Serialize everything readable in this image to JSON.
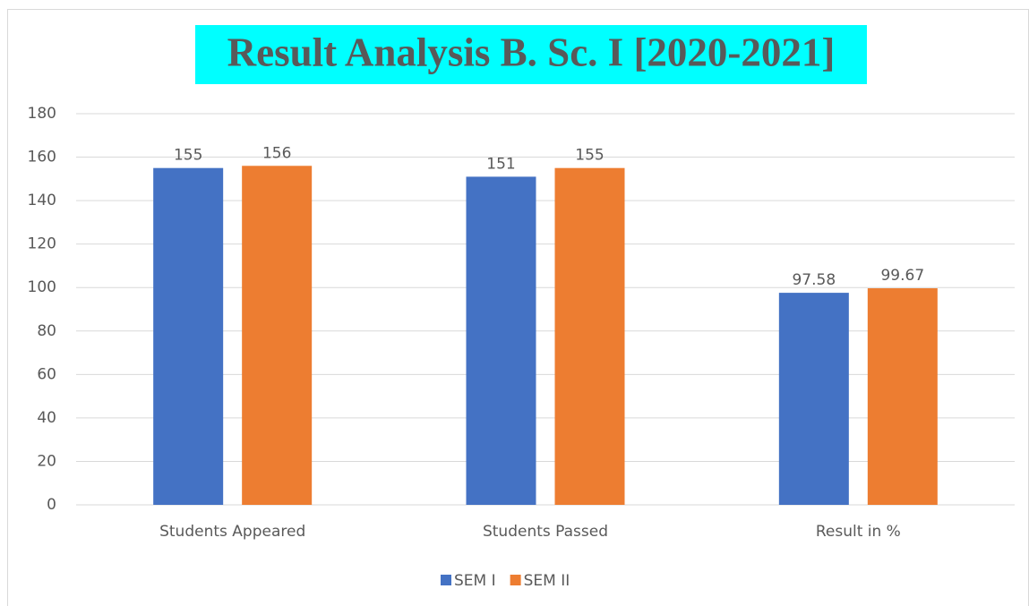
{
  "chart_data": {
    "type": "bar",
    "title": "Result Analysis B. Sc. I [2020-2021]",
    "categories": [
      "Students Appeared",
      "Students Passed",
      "Result in %"
    ],
    "series": [
      {
        "name": "SEM I",
        "color": "#4472c4",
        "values": [
          155,
          151,
          97.58
        ]
      },
      {
        "name": "SEM II",
        "color": "#ed7d31",
        "values": [
          156,
          155,
          99.67
        ]
      }
    ],
    "ylim": [
      0,
      180
    ],
    "yticks": [
      0,
      20,
      40,
      60,
      80,
      100,
      120,
      140,
      160,
      180
    ],
    "grid": true,
    "legend": "bottom"
  }
}
